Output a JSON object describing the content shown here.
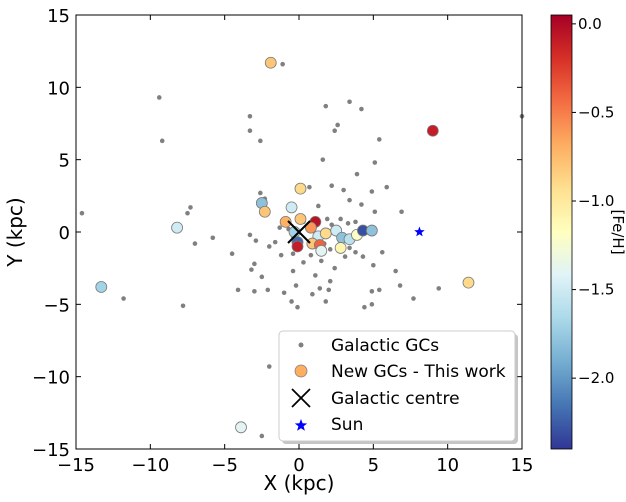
{
  "chart_data": {
    "type": "scatter",
    "xlabel": "X (kpc)",
    "ylabel": "Y (kpc)",
    "xlim": [
      -15,
      15
    ],
    "ylim": [
      -15,
      15
    ],
    "xticks": [
      -15,
      -10,
      -5,
      0,
      5,
      10,
      15
    ],
    "yticks": [
      -15,
      -10,
      -5,
      0,
      5,
      10,
      15
    ],
    "xtick_labels": [
      "−15",
      "−10",
      "−5",
      "0",
      "5",
      "10",
      "15"
    ],
    "ytick_labels": [
      "−15",
      "−10",
      "−5",
      "0",
      "5",
      "10",
      "15"
    ],
    "colorbar": {
      "label": "[Fe/H]",
      "range": [
        -2.4,
        0.05
      ],
      "ticks": [
        0.0,
        -0.5,
        -1.0,
        -1.5,
        -2.0
      ],
      "tick_labels": [
        "0.0",
        "−0.5",
        "−1.0",
        "−1.5",
        "−2.0"
      ],
      "colors": [
        "#313695",
        "#4575b4",
        "#74add1",
        "#abd9e9",
        "#e0f3f8",
        "#ffffbf",
        "#fee090",
        "#fdae61",
        "#f46d43",
        "#d73027",
        "#a50026"
      ]
    },
    "legend": {
      "position": "lower-right",
      "entries": [
        "Galactic GCs",
        "New GCs - This work",
        "Galactic centre",
        "Sun"
      ]
    },
    "series": [
      {
        "name": "Galactic GCs",
        "color": "#808080",
        "points": [
          [
            -1.1,
            11.6
          ],
          [
            -9.4,
            9.3
          ],
          [
            -9.2,
            6.3
          ],
          [
            -3.3,
            8.0
          ],
          [
            -3.3,
            7.0
          ],
          [
            -2.6,
            6.3
          ],
          [
            1.8,
            8.7
          ],
          [
            3.4,
            9.0
          ],
          [
            2.6,
            7.4
          ],
          [
            2.4,
            7.0
          ],
          [
            4.2,
            8.5
          ],
          [
            5.4,
            6.4
          ],
          [
            15.0,
            8.0
          ],
          [
            1.6,
            5.0
          ],
          [
            5.1,
            4.8
          ],
          [
            3.9,
            4.0
          ],
          [
            -2.6,
            2.7
          ],
          [
            -2.3,
            2.3
          ],
          [
            0.7,
            3.1
          ],
          [
            2.2,
            3.2
          ],
          [
            3.0,
            2.9
          ],
          [
            3.4,
            2.2
          ],
          [
            4.9,
            2.8
          ],
          [
            5.9,
            3.1
          ],
          [
            4.2,
            1.9
          ],
          [
            5.1,
            1.4
          ],
          [
            1.3,
            1.8
          ],
          [
            -7.3,
            1.7
          ],
          [
            -7.5,
            1.3
          ],
          [
            -14.6,
            1.3
          ],
          [
            -5.8,
            -0.4
          ],
          [
            -7.0,
            -0.8
          ],
          [
            -4.5,
            -1.5
          ],
          [
            -3.3,
            -0.2
          ],
          [
            -2.9,
            -0.6
          ],
          [
            -2.0,
            -1.0
          ],
          [
            -1.6,
            -0.7
          ],
          [
            -1.2,
            -1.6
          ],
          [
            -0.4,
            -1.5
          ],
          [
            0.3,
            -2.1
          ],
          [
            0.8,
            -1.6
          ],
          [
            1.5,
            -2.0
          ],
          [
            2.4,
            -2.5
          ],
          [
            3.1,
            -1.7
          ],
          [
            4.3,
            -1.7
          ],
          [
            5.0,
            -2.3
          ],
          [
            5.6,
            -1.4
          ],
          [
            6.5,
            -2.7
          ],
          [
            1.1,
            -3.0
          ],
          [
            2.1,
            -3.4
          ],
          [
            0.9,
            -4.3
          ],
          [
            1.8,
            -4.8
          ],
          [
            -0.2,
            -3.7
          ],
          [
            -1.0,
            -4.2
          ],
          [
            -2.1,
            -4.0
          ],
          [
            -3.0,
            -4.1
          ],
          [
            -4.1,
            -4.0
          ],
          [
            -2.5,
            -3.1
          ],
          [
            -3.2,
            -2.6
          ],
          [
            -3.0,
            -2.2
          ],
          [
            -0.4,
            -2.7
          ],
          [
            -0.5,
            -4.8
          ],
          [
            -0.1,
            -5.2
          ],
          [
            1.4,
            -3.9
          ],
          [
            2.0,
            -4.0
          ],
          [
            4.4,
            -5.2
          ],
          [
            4.9,
            -4.1
          ],
          [
            5.4,
            -4.0
          ],
          [
            4.9,
            -5.0
          ],
          [
            6.8,
            -3.7
          ],
          [
            7.7,
            -4.6
          ],
          [
            9.4,
            -3.9
          ],
          [
            -11.8,
            -4.6
          ],
          [
            -7.8,
            -5.1
          ],
          [
            -2.0,
            -9.3
          ],
          [
            -2.5,
            -14.1
          ],
          [
            6.9,
            1.4
          ],
          [
            2.6,
            -0.2
          ],
          [
            3.3,
            0.6
          ],
          [
            3.8,
            0.7
          ],
          [
            4.3,
            0.3
          ],
          [
            2.8,
            0.9
          ],
          [
            2.2,
            0.5
          ],
          [
            1.9,
            0.9
          ],
          [
            -1.3,
            0.3
          ],
          [
            -0.7,
            0.2
          ],
          [
            -0.4,
            -0.3
          ],
          [
            0.3,
            0.7
          ],
          [
            0.6,
            0.3
          ],
          [
            1.1,
            0.4
          ],
          [
            1.5,
            -0.2
          ],
          [
            1.7,
            -0.8
          ],
          [
            2.1,
            -1.2
          ],
          [
            3.4,
            -1.1
          ],
          [
            3.8,
            -1.4
          ]
        ]
      },
      {
        "name": "New GCs - This work",
        "points": [
          [
            -1.9,
            11.7,
            -0.8
          ],
          [
            9.0,
            7.0,
            -0.1
          ],
          [
            0.1,
            3.0,
            -0.9
          ],
          [
            -2.5,
            2.0,
            -1.8
          ],
          [
            -2.3,
            1.4,
            -0.8
          ],
          [
            -0.5,
            1.7,
            -1.5
          ],
          [
            0.1,
            0.9,
            -0.8
          ],
          [
            -0.9,
            0.7,
            -0.7
          ],
          [
            1.1,
            0.7,
            -0.05
          ],
          [
            -0.3,
            0.0,
            -1.7
          ],
          [
            0.8,
            0.3,
            -0.6
          ],
          [
            1.3,
            -0.3,
            -1.5
          ],
          [
            1.8,
            -0.1,
            -0.9
          ],
          [
            -0.1,
            -0.7,
            -2.2
          ],
          [
            -0.1,
            -1.0,
            -0.1
          ],
          [
            0.9,
            -0.8,
            -0.8
          ],
          [
            1.4,
            -0.9,
            -0.4
          ],
          [
            1.5,
            -1.3,
            -1.4
          ],
          [
            2.5,
            0.1,
            -1.5
          ],
          [
            2.9,
            -0.4,
            -1.8
          ],
          [
            3.4,
            -0.5,
            -1.6
          ],
          [
            3.9,
            -0.2,
            -1.2
          ],
          [
            4.3,
            0.1,
            -2.3
          ],
          [
            4.9,
            0.1,
            -1.8
          ],
          [
            2.8,
            -1.1,
            -1.1
          ],
          [
            -8.2,
            0.3,
            -1.5
          ],
          [
            -13.3,
            -3.8,
            -1.7
          ],
          [
            11.4,
            -3.5,
            -0.9
          ],
          [
            -3.9,
            -13.5,
            -1.4
          ]
        ]
      },
      {
        "name": "Galactic centre",
        "points": [
          [
            0,
            0
          ]
        ]
      },
      {
        "name": "Sun",
        "color": "#0000ff",
        "points": [
          [
            8.1,
            0.0
          ]
        ]
      }
    ]
  }
}
